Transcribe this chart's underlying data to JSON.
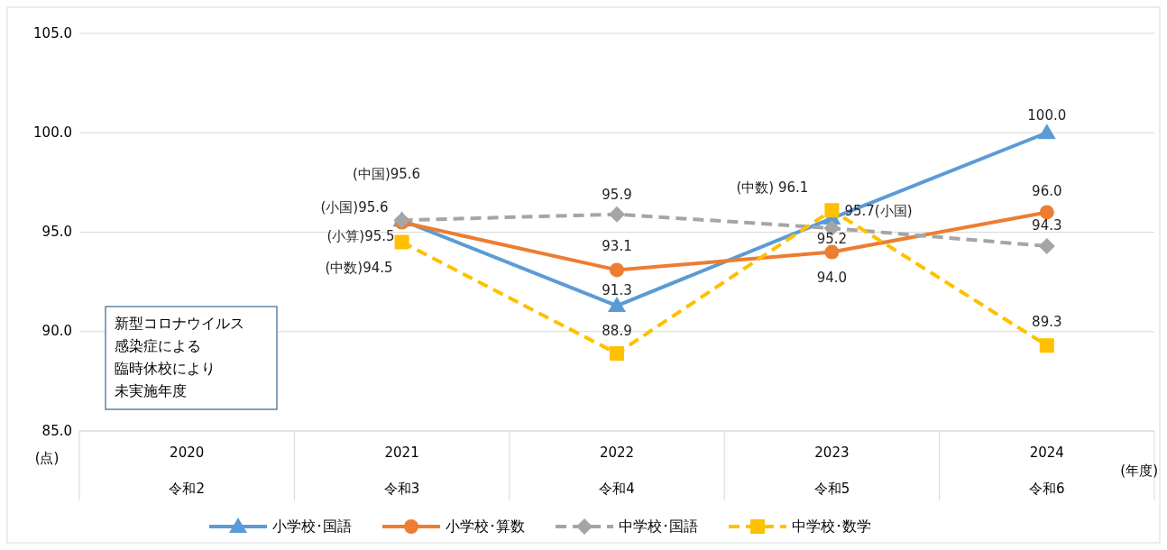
{
  "chart_data": {
    "type": "line",
    "categories": [
      "2020\n令和2",
      "2021\n令和3",
      "2022\n令和4",
      "2023\n令和5",
      "2024\n令和6"
    ],
    "series": [
      {
        "name": "小学校･国語",
        "color": "#5b9bd5",
        "marker": "triangle",
        "line_style": "solid",
        "values": [
          null,
          95.6,
          91.3,
          95.7,
          100.0
        ],
        "value_labels": [
          null,
          "(小国)95.6",
          "91.3",
          "95.7(小国)",
          "100.0"
        ]
      },
      {
        "name": "小学校･算数",
        "color": "#ed7d31",
        "marker": "circle",
        "line_style": "solid",
        "values": [
          null,
          95.5,
          93.1,
          94.0,
          96.0
        ],
        "value_labels": [
          null,
          "(小算)95.5",
          "93.1",
          "94.0",
          "96.0"
        ]
      },
      {
        "name": "中学校･国語",
        "color": "#a5a5a5",
        "marker": "diamond",
        "line_style": "dashed",
        "values": [
          null,
          95.6,
          95.9,
          95.2,
          94.3
        ],
        "value_labels": [
          null,
          "(中国)95.6",
          "95.9",
          "95.2",
          "94.3"
        ]
      },
      {
        "name": "中学校･数学",
        "color": "#ffc000",
        "marker": "square",
        "line_style": "dashed",
        "values": [
          null,
          94.5,
          88.9,
          96.1,
          89.3
        ],
        "value_labels": [
          null,
          "(中数)94.5",
          "88.9",
          "(中数) 96.1",
          "89.3"
        ]
      }
    ],
    "ylim": [
      85,
      105
    ],
    "yticks": [
      {
        "value": 85,
        "label": "85.0"
      },
      {
        "value": 90,
        "label": "90.0"
      },
      {
        "value": 95,
        "label": "95.0"
      },
      {
        "value": 100,
        "label": "100.0"
      },
      {
        "value": 105,
        "label": "105.0"
      }
    ],
    "ylabel": "(点)",
    "xlabel": "(年度)",
    "grid": "y",
    "legend": "bottom",
    "annotations": [
      "新型コロナウイルス",
      "感染症による",
      "臨時休校により",
      "未実施年度"
    ]
  }
}
